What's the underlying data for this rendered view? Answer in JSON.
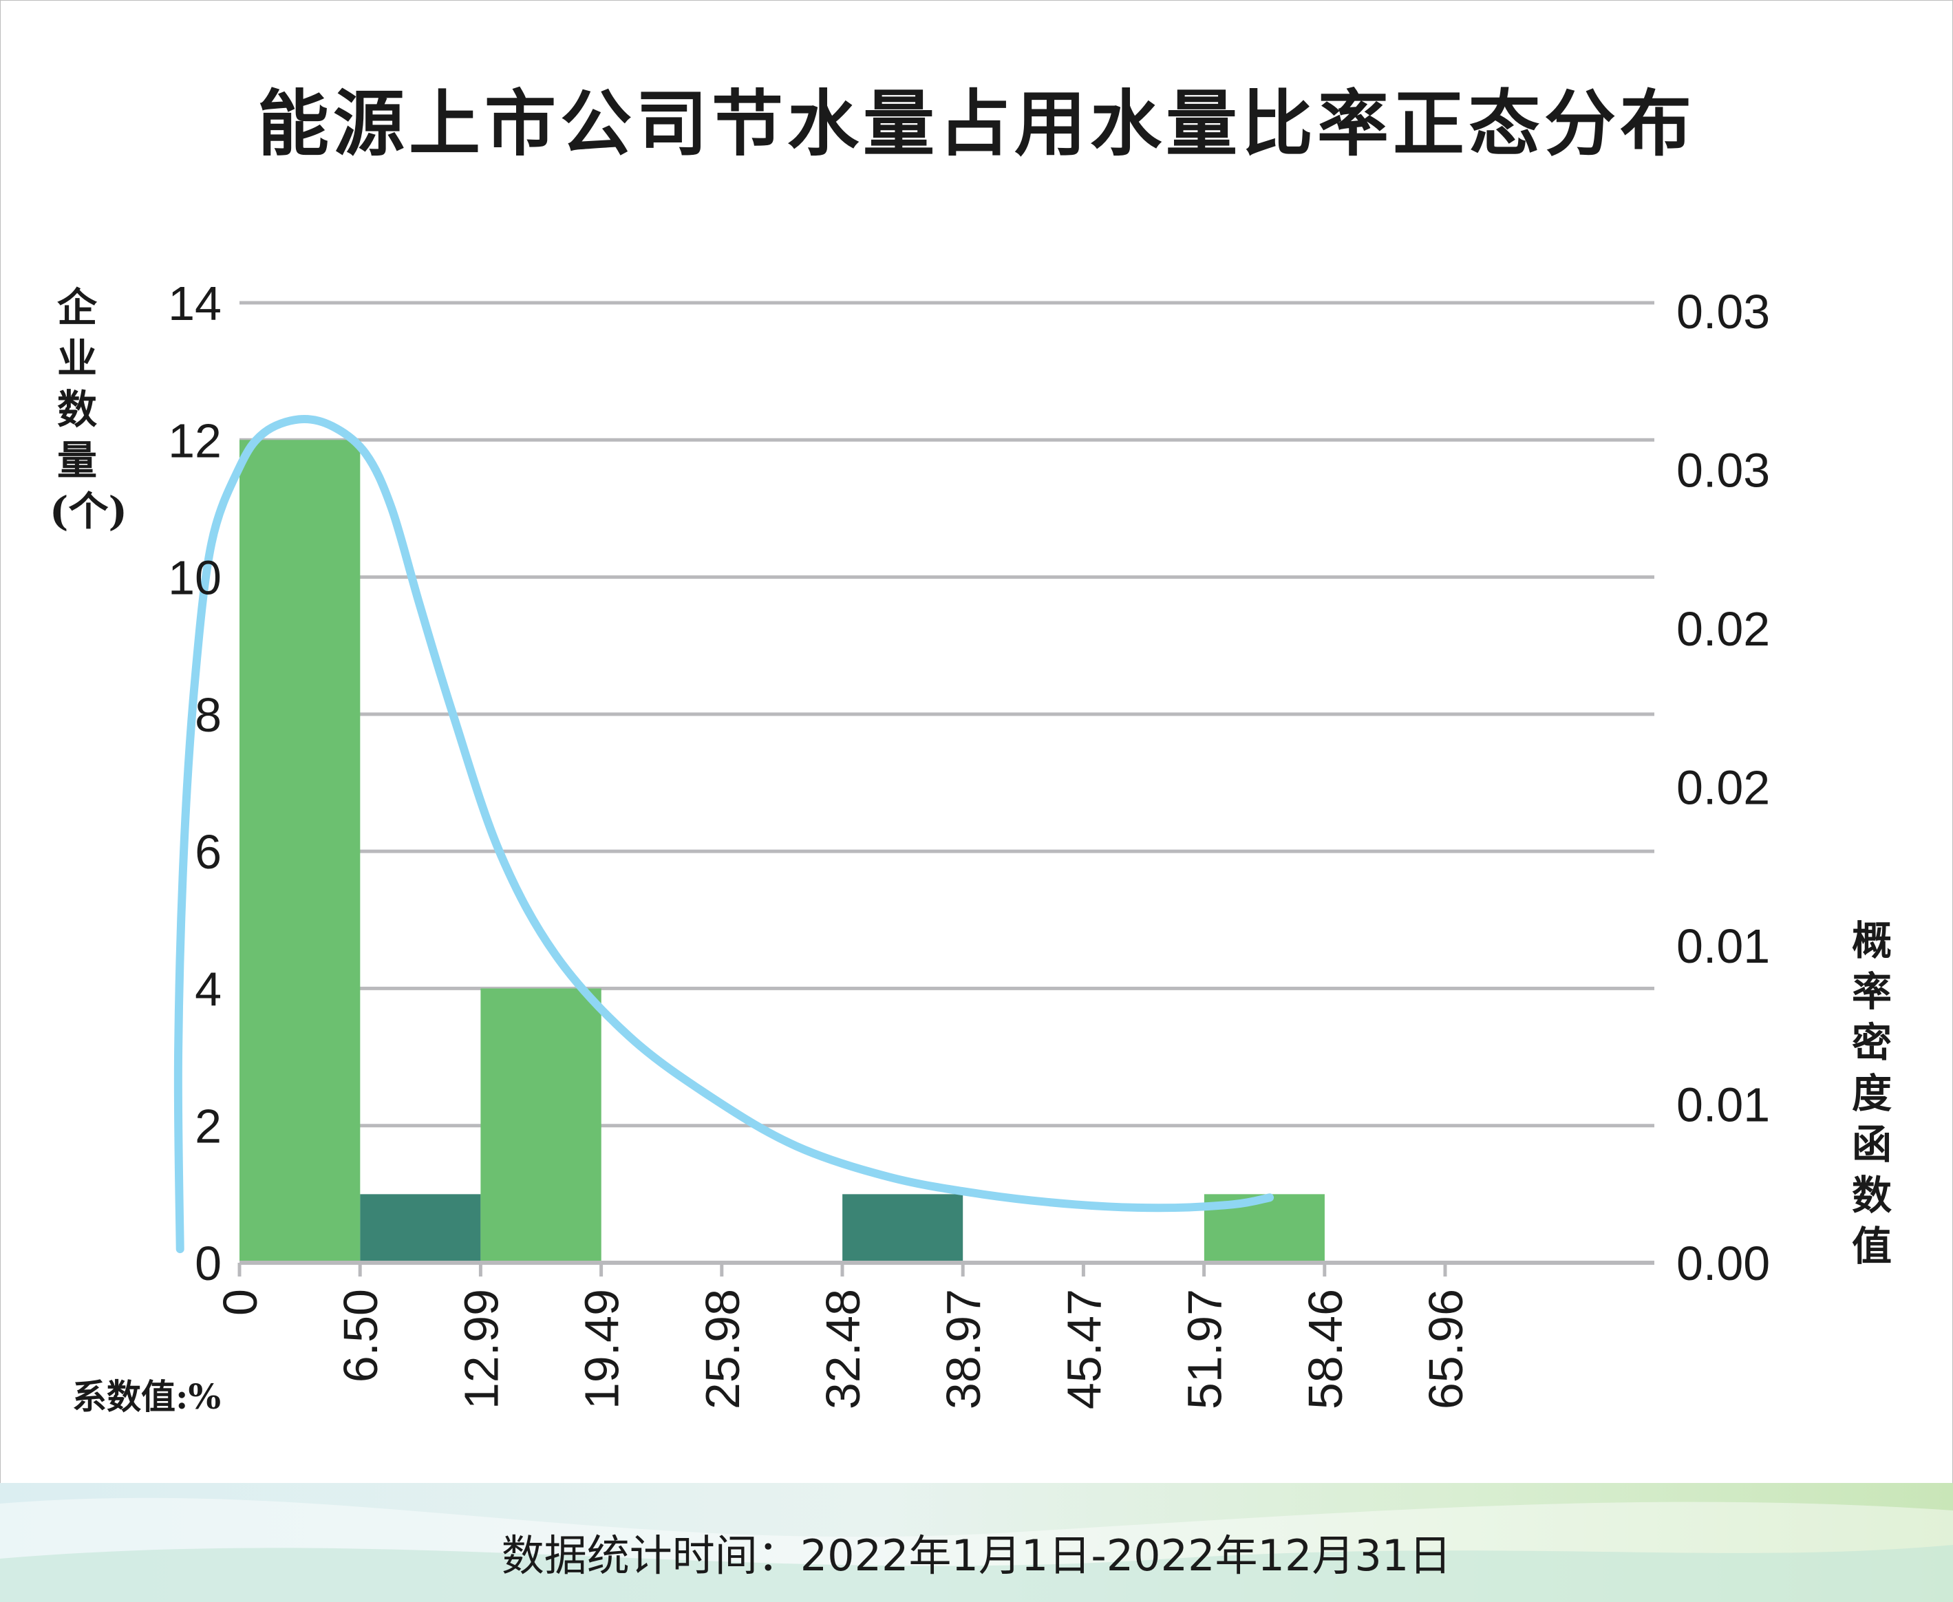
{
  "title": "能源上市公司节水量占用水量比率正态分布",
  "left_axis_label": "企业数量(个)",
  "right_axis_label": "概率密度函数值",
  "unit_note": "系数值:%",
  "footer": "数据统计时间：2022年1月1日-2022年12月31日",
  "colors": {
    "bar_light": "#6cc070",
    "bar_dark": "#3b8474",
    "curve": "#8fd6f3",
    "grid": "#b9b9bc"
  },
  "chart_data": {
    "type": "bar",
    "x_ticks": [
      "0",
      "6.50",
      "12.99",
      "19.49",
      "25.98",
      "32.48",
      "38.97",
      "45.47",
      "51.97",
      "58.46",
      "65.96"
    ],
    "bins": [
      {
        "start": 0,
        "end": 6.5,
        "count": 12,
        "shade": "light"
      },
      {
        "start": 6.5,
        "end": 12.99,
        "count": 1,
        "shade": "dark"
      },
      {
        "start": 12.99,
        "end": 19.49,
        "count": 4,
        "shade": "light"
      },
      {
        "start": 32.48,
        "end": 38.97,
        "count": 1,
        "shade": "dark"
      },
      {
        "start": 51.97,
        "end": 58.46,
        "count": 1,
        "shade": "light"
      }
    ],
    "ylim_left": [
      0,
      14
    ],
    "y_ticks_left": [
      "0",
      "2",
      "4",
      "6",
      "8",
      "10",
      "12",
      "14"
    ],
    "y_ticks_right": [
      "0.00",
      "0.01",
      "0.01",
      "0.02",
      "0.02",
      "0.03",
      "0.03"
    ],
    "density_curve": {
      "x": [
        -3.2,
        -3.3,
        -3.0,
        -2.4,
        -1.5,
        0,
        1.3,
        3.2,
        5.0,
        6.8,
        8.2,
        9.7,
        11.5,
        14.0,
        17.0,
        21.0,
        25.5,
        30.0,
        35.0,
        40.0,
        45.0,
        49.5,
        53.5,
        55.5
      ],
      "y": [
        0.2,
        3.0,
        6.0,
        8.5,
        10.5,
        11.6,
        12.1,
        12.3,
        12.2,
        11.8,
        11.0,
        9.6,
        8.0,
        6.0,
        4.5,
        3.3,
        2.4,
        1.7,
        1.25,
        1.0,
        0.85,
        0.8,
        0.85,
        0.95
      ]
    },
    "grid": true
  }
}
